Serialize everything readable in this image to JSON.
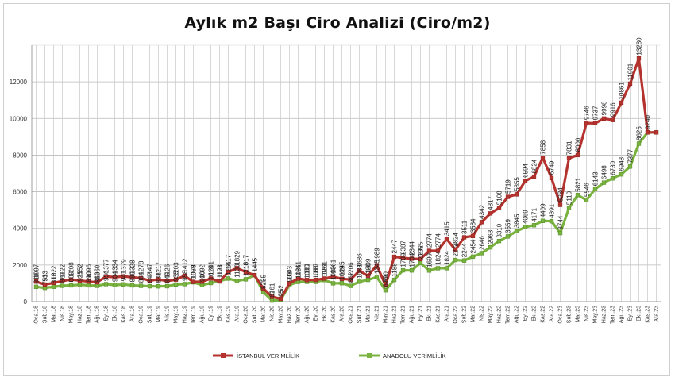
{
  "chart_data": {
    "type": "line",
    "title": "Aylık m2 Başı Ciro Analizi (Ciro/m2)",
    "xlabel": "",
    "ylabel": "",
    "ylim": [
      0,
      14000
    ],
    "yticks": [
      0,
      2000,
      4000,
      6000,
      8000,
      10000,
      12000
    ],
    "grid": true,
    "legend_position": "bottom",
    "categories": [
      "Oca.18",
      "Şub.18",
      "Mar.18",
      "Nis.18",
      "May.18",
      "Haz.18",
      "Tem.18",
      "Ağu.18",
      "Eyl.18",
      "Ekı.18",
      "Kas.18",
      "Ara.18",
      "Oca.19",
      "Şub.19",
      "Mar.19",
      "Nis.19",
      "May.19",
      "Haz.19",
      "Tem.19",
      "Ağu.19",
      "Eyl.19",
      "Ekı.19",
      "Kas.19",
      "Ara.19",
      "Oca.20",
      "Şub.20",
      "Mar.20",
      "Nis.20",
      "May.20",
      "Haz.20",
      "Tem.20",
      "Ağu.20",
      "Eyl.20",
      "Ekı.20",
      "Kas.20",
      "Ara.20",
      "Oca.21",
      "Şub.21",
      "Mar.21",
      "Nis.21",
      "May.21",
      "Haz.21",
      "Tem.21",
      "Ağu.21",
      "Eyl.21",
      "Ekı.21",
      "Kas.21",
      "Ara.21",
      "Oca.22",
      "Şub.22",
      "Mar.22",
      "Nis.22",
      "May.22",
      "Haz.22",
      "Tem.22",
      "Ağu.22",
      "Eyl.22",
      "Ekı.22",
      "Kas.22",
      "Ara.22",
      "Oca.23",
      "Şub.23",
      "Mar.23",
      "Nis.23",
      "May.23",
      "Haz.23",
      "Tem.23",
      "Ağu.23",
      "Eyl.23",
      "Ekı.23",
      "Kas.23",
      "Ara.23"
    ],
    "series": [
      {
        "name": "İSTANBUL VERİMLİLİK",
        "color": "#b5332e",
        "marker": "square",
        "values": [
          1097,
          933,
          1022,
          1122,
          1208,
          1152,
          1096,
          1060,
          1377,
          1334,
          1379,
          1328,
          1278,
          1147,
          1217,
          1126,
          1203,
          1412,
          1078,
          1092,
          1261,
          1103,
          1617,
          1829,
          1617,
          1445,
          725,
          261,
          152,
          1003,
          1261,
          1181,
          1187,
          1261,
          1361,
          1245,
          1206,
          1686,
          1409,
          1989,
          890,
          2447,
          2387,
          2344,
          2325,
          2774,
          2774,
          3415,
          2824,
          3511,
          3584,
          4342,
          4817,
          5108,
          5719,
          5855,
          6594,
          6824,
          7858,
          6749,
          5284,
          7831,
          8000,
          9746,
          9737,
          9998,
          9916,
          10861,
          11901,
          13280,
          9240,
          9240
        ],
        "labels": [
          "1097",
          "933",
          "1022",
          "1122",
          "1208",
          "1152",
          "1096",
          "1060",
          "1377",
          "1334",
          "1379",
          "1328",
          "1278",
          "1147",
          "1217",
          "1126",
          "1203",
          "1412",
          "1078",
          "1092",
          "1261",
          "1103",
          "1617",
          "1829",
          "1617",
          "1445",
          "725",
          "261",
          "152",
          "1003",
          "1261",
          "1181",
          "1187",
          "1261",
          "1361",
          "1245",
          "1206",
          "1686",
          "1409",
          "1989",
          "890",
          "2447",
          "2387",
          "2344",
          "2325",
          "2774",
          "2774",
          "3415",
          "2824",
          "3511",
          "3584",
          "4342",
          "4817",
          "5108",
          "5719",
          "5855",
          "6594",
          "6824",
          "7858",
          "6749",
          "5284",
          "7831",
          "8000",
          "9746",
          "9737",
          "9998",
          "9916",
          "10861",
          "11901",
          "13280",
          "",
          ""
        ]
      },
      {
        "name": "ANADOLU VERİMLİLİK",
        "color": "#7ab33f",
        "marker": "square",
        "values": [
          810,
          751,
          812,
          867,
          889,
          925,
          890,
          866,
          956,
          904,
          941,
          889,
          864,
          842,
          838,
          845,
          935,
          958,
          1059,
          908,
          1018,
          1121,
          1261,
          1133,
          1218,
          1445,
          525,
          61,
          95,
          903,
          1081,
          1085,
          1081,
          1181,
          1000,
          1009,
          862,
          1088,
          1188,
          1345,
          620,
          1188,
          1709,
          1704,
          2105,
          1699,
          1824,
          1824,
          2274,
          2244,
          2454,
          2646,
          2963,
          3310,
          3559,
          3845,
          4069,
          4171,
          4409,
          4391,
          3744,
          5110,
          5821,
          5546,
          6143,
          6498,
          6730,
          6948,
          7377,
          8625,
          9240,
          9240
        ],
        "labels": [
          "810",
          "751",
          "812",
          "867",
          "889",
          "925",
          "890",
          "866",
          "956",
          "904",
          "941",
          "889",
          "864",
          "842",
          "838",
          "845",
          "935",
          "958",
          "1059",
          "908",
          "1018",
          "1121",
          "1261",
          "1133",
          "1218",
          "1445",
          "525",
          "61",
          "95",
          "903",
          "1081",
          "1085",
          "1081",
          "1181",
          "1000",
          "1009",
          "862",
          "1088",
          "1188",
          "1345",
          "620",
          "1188",
          "1709",
          "1704",
          "2105",
          "1699",
          "1824",
          "1824",
          "2274",
          "2244",
          "2454",
          "2646",
          "2963",
          "3310",
          "3559",
          "3845",
          "4069",
          "4171",
          "4409",
          "4391",
          "3744",
          "5110",
          "5821",
          "5546",
          "6143",
          "6498",
          "6730",
          "6948",
          "7377",
          "8625",
          "9240",
          ""
        ]
      }
    ]
  }
}
